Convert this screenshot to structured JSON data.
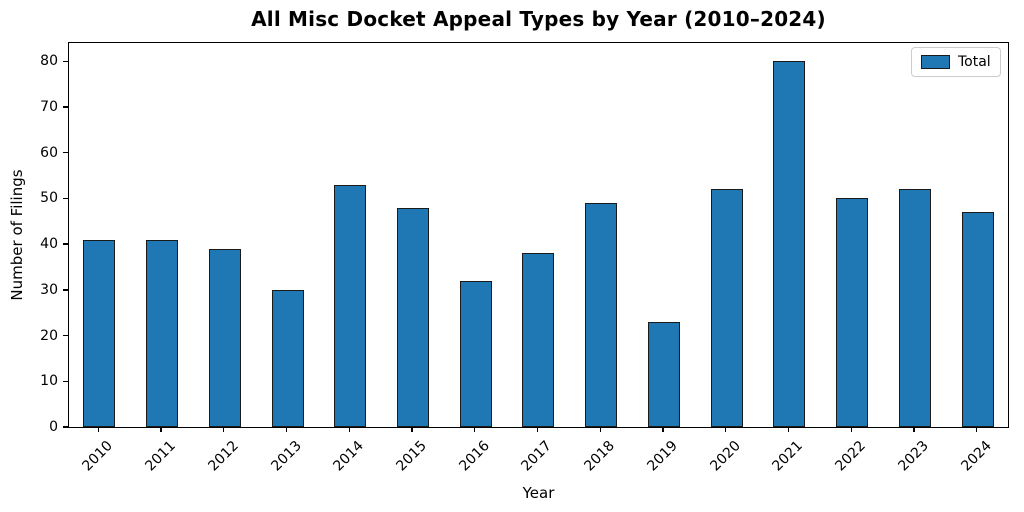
{
  "chart_data": {
    "type": "bar",
    "title": "All Misc Docket Appeal Types by Year (2010–2024)",
    "xlabel": "Year",
    "ylabel": "Number of Filings",
    "categories": [
      "2010",
      "2011",
      "2012",
      "2013",
      "2014",
      "2015",
      "2016",
      "2017",
      "2018",
      "2019",
      "2020",
      "2021",
      "2022",
      "2023",
      "2024"
    ],
    "values": [
      41,
      41,
      39,
      30,
      53,
      48,
      32,
      38,
      49,
      23,
      52,
      80,
      50,
      52,
      47
    ],
    "series": [
      {
        "name": "Total",
        "values": [
          41,
          41,
          39,
          30,
          53,
          48,
          32,
          38,
          49,
          23,
          52,
          80,
          50,
          52,
          47
        ]
      }
    ],
    "yticks": [
      0,
      10,
      20,
      30,
      40,
      50,
      60,
      70,
      80
    ],
    "ylim": [
      0,
      84
    ],
    "grid": false,
    "x_tick_rotation_deg": 45,
    "legend": {
      "entries": [
        "Total"
      ],
      "position": "upper right"
    },
    "colors": {
      "bar_fill": "#1f77b4",
      "bar_edge": "#1a1a1a",
      "spine": "#000000",
      "legend_border": "#cccccc",
      "text": "#000000"
    }
  }
}
